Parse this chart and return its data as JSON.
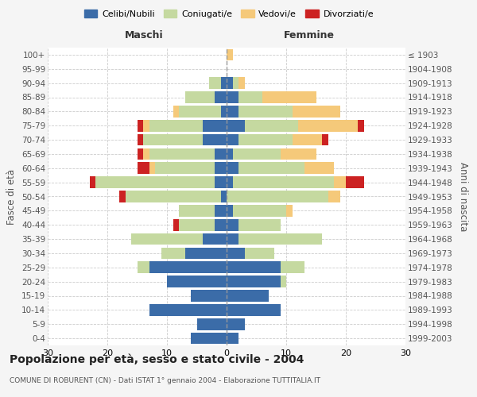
{
  "age_groups": [
    "0-4",
    "5-9",
    "10-14",
    "15-19",
    "20-24",
    "25-29",
    "30-34",
    "35-39",
    "40-44",
    "45-49",
    "50-54",
    "55-59",
    "60-64",
    "65-69",
    "70-74",
    "75-79",
    "80-84",
    "85-89",
    "90-94",
    "95-99",
    "100+"
  ],
  "birth_years": [
    "1999-2003",
    "1994-1998",
    "1989-1993",
    "1984-1988",
    "1979-1983",
    "1974-1978",
    "1969-1973",
    "1964-1968",
    "1959-1963",
    "1954-1958",
    "1949-1953",
    "1944-1948",
    "1939-1943",
    "1934-1938",
    "1929-1933",
    "1924-1928",
    "1919-1923",
    "1914-1918",
    "1909-1913",
    "1904-1908",
    "≤ 1903"
  ],
  "colors": {
    "celibi": "#3b6ca8",
    "coniugati": "#c5d9a0",
    "vedovi": "#f5c97a",
    "divorziati": "#cc2222"
  },
  "males": {
    "celibi": [
      6,
      5,
      13,
      6,
      10,
      13,
      7,
      4,
      2,
      2,
      1,
      2,
      2,
      2,
      4,
      4,
      1,
      2,
      1,
      0,
      0
    ],
    "coniugati": [
      0,
      0,
      0,
      0,
      0,
      2,
      4,
      12,
      6,
      6,
      16,
      20,
      10,
      11,
      10,
      9,
      7,
      5,
      2,
      0,
      0
    ],
    "vedovi": [
      0,
      0,
      0,
      0,
      0,
      0,
      0,
      0,
      0,
      0,
      0,
      0,
      1,
      1,
      0,
      1,
      1,
      0,
      0,
      0,
      0
    ],
    "divorziati": [
      0,
      0,
      0,
      0,
      0,
      0,
      0,
      0,
      1,
      0,
      1,
      1,
      2,
      1,
      1,
      1,
      0,
      0,
      0,
      0,
      0
    ]
  },
  "females": {
    "celibi": [
      2,
      3,
      9,
      7,
      9,
      9,
      3,
      2,
      2,
      1,
      0,
      1,
      2,
      1,
      2,
      3,
      2,
      2,
      1,
      0,
      0
    ],
    "coniugati": [
      0,
      0,
      0,
      0,
      1,
      4,
      5,
      14,
      7,
      9,
      17,
      17,
      11,
      8,
      9,
      9,
      9,
      4,
      1,
      0,
      0
    ],
    "vedovi": [
      0,
      0,
      0,
      0,
      0,
      0,
      0,
      0,
      0,
      1,
      2,
      2,
      5,
      6,
      5,
      10,
      8,
      9,
      1,
      0,
      1
    ],
    "divorziati": [
      0,
      0,
      0,
      0,
      0,
      0,
      0,
      0,
      0,
      0,
      0,
      3,
      0,
      0,
      1,
      1,
      0,
      0,
      0,
      0,
      0
    ]
  },
  "title": "Popolazione per età, sesso e stato civile - 2004",
  "subtitle": "COMUNE DI ROBURENT (CN) - Dati ISTAT 1° gennaio 2004 - Elaborazione TUTTITALIA.IT",
  "xlabel_left": "Maschi",
  "xlabel_right": "Femmine",
  "ylabel_left": "Fasce di età",
  "ylabel_right": "Anni di nascita",
  "xlim": 30,
  "legend_labels": [
    "Celibi/Nubili",
    "Coniugati/e",
    "Vedovi/e",
    "Divorziati/e"
  ],
  "bg_color": "#f5f5f5",
  "plot_bg_color": "#ffffff"
}
